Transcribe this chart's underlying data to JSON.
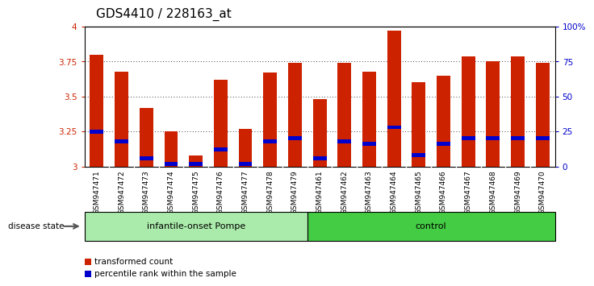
{
  "title": "GDS4410 / 228163_at",
  "samples": [
    "GSM947471",
    "GSM947472",
    "GSM947473",
    "GSM947474",
    "GSM947475",
    "GSM947476",
    "GSM947477",
    "GSM947478",
    "GSM947479",
    "GSM947461",
    "GSM947462",
    "GSM947463",
    "GSM947464",
    "GSM947465",
    "GSM947466",
    "GSM947467",
    "GSM947468",
    "GSM947469",
    "GSM947470"
  ],
  "red_values": [
    3.8,
    3.68,
    3.42,
    3.25,
    3.08,
    3.62,
    3.27,
    3.67,
    3.74,
    3.48,
    3.74,
    3.68,
    3.97,
    3.6,
    3.65,
    3.79,
    3.75,
    3.79,
    3.74
  ],
  "blue_values": [
    3.25,
    3.18,
    3.06,
    3.02,
    3.02,
    3.12,
    3.02,
    3.18,
    3.2,
    3.06,
    3.18,
    3.16,
    3.28,
    3.08,
    3.16,
    3.2,
    3.2,
    3.2,
    3.2
  ],
  "ymin": 3.0,
  "ymax": 4.0,
  "yticks": [
    3.0,
    3.25,
    3.5,
    3.75,
    4.0
  ],
  "ytick_labels": [
    "3",
    "3.25",
    "3.5",
    "3.75",
    "4"
  ],
  "right_yticks": [
    0,
    25,
    50,
    75,
    100
  ],
  "right_ytick_labels": [
    "0",
    "25",
    "50",
    "75",
    "100%"
  ],
  "group1_label": "infantile-onset Pompe",
  "group2_label": "control",
  "group1_count": 9,
  "group2_count": 10,
  "disease_state_label": "disease state",
  "legend1_label": "transformed count",
  "legend2_label": "percentile rank within the sample",
  "red_color": "#cc2200",
  "blue_color": "#0000cc",
  "bar_width": 0.55,
  "bg_color": "#ffffff",
  "plot_bg_color": "#ffffff",
  "tick_bg_color": "#c8c8c8",
  "group1_color": "#aaeaaa",
  "group2_color": "#44cc44",
  "title_fontsize": 11,
  "tick_fontsize": 7.5,
  "label_fontsize": 8,
  "sample_fontsize": 6.5
}
